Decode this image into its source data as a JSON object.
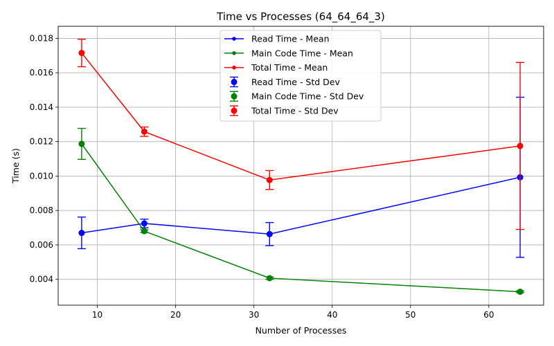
{
  "chart_data": {
    "type": "line",
    "title": "Time vs Processes (64_64_64_3)",
    "xlabel": "Number of Processes",
    "ylabel": "Time (s)",
    "xlim": [
      5,
      67
    ],
    "ylim": [
      0.0025,
      0.0187
    ],
    "xticks": [
      10,
      20,
      30,
      40,
      50,
      60
    ],
    "xtick_labels": [
      "10",
      "20",
      "30",
      "40",
      "50",
      "60"
    ],
    "yticks": [
      0.004,
      0.006,
      0.008,
      0.01,
      0.012,
      0.014,
      0.016,
      0.018
    ],
    "ytick_labels": [
      "0.004",
      "0.006",
      "0.008",
      "0.010",
      "0.012",
      "0.014",
      "0.016",
      "0.018"
    ],
    "grid": true,
    "legend_position": "top-center",
    "x": [
      8,
      16,
      32,
      64
    ],
    "series": [
      {
        "name": "Read Time - Mean",
        "std_name": "Read Time - Std Dev",
        "color": "#0000ff",
        "values": [
          0.0067,
          0.00725,
          0.00663,
          0.00993
        ],
        "errors": [
          0.00092,
          0.00025,
          0.00067,
          0.00465
        ]
      },
      {
        "name": "Main Code Time - Mean",
        "std_name": "Main Code Time - Std Dev",
        "color": "#008000",
        "values": [
          0.01187,
          0.0068,
          0.00407,
          0.00328
        ],
        "errors": [
          0.0009,
          8e-05,
          7e-05,
          5e-05
        ]
      },
      {
        "name": "Total Time - Mean",
        "std_name": "Total Time - Std Dev",
        "color": "#ff0000",
        "values": [
          0.01715,
          0.01258,
          0.00977,
          0.01175
        ],
        "errors": [
          0.0008,
          0.00027,
          0.00055,
          0.00485
        ]
      }
    ]
  }
}
